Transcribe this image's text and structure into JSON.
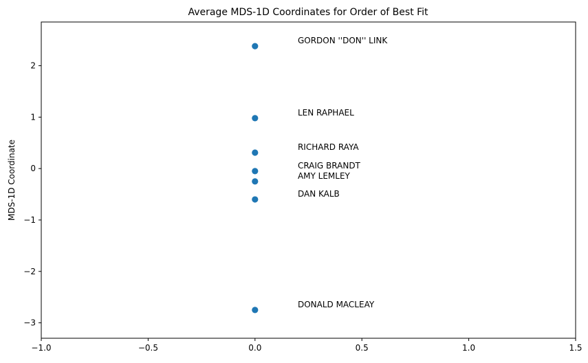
{
  "chart_data": {
    "type": "scatter",
    "title": "Average MDS-1D Coordinates for Order of Best Fit",
    "xlabel": "",
    "ylabel": "MDS-1D Coordinate",
    "xlim": [
      -1.0,
      1.5
    ],
    "ylim": [
      -3.3,
      2.85
    ],
    "grid": false,
    "legend": "none",
    "color": "#1f77b4",
    "x_ticks": [
      "−1.0",
      "−0.5",
      "0.0",
      "0.5",
      "1.0",
      "1.5"
    ],
    "x_tick_values": [
      -1.0,
      -0.5,
      0.0,
      0.5,
      1.0,
      1.5
    ],
    "y_ticks": [
      "−3",
      "−2",
      "−1",
      "0",
      "1",
      "2"
    ],
    "y_tick_values": [
      -3,
      -2,
      -1,
      0,
      1,
      2
    ],
    "label_offset_x": 0.2,
    "points": [
      {
        "x": 0,
        "y": 2.38,
        "label": "GORDON ''DON'' LINK"
      },
      {
        "x": 0,
        "y": 0.98,
        "label": "LEN RAPHAEL"
      },
      {
        "x": 0,
        "y": 0.31,
        "label": "RICHARD RAYA"
      },
      {
        "x": 0,
        "y": -0.05,
        "label": "CRAIG BRANDT"
      },
      {
        "x": 0,
        "y": -0.25,
        "label": "AMY LEMLEY"
      },
      {
        "x": 0,
        "y": -0.6,
        "label": "DAN KALB"
      },
      {
        "x": 0,
        "y": -2.75,
        "label": "DONALD MACLEAY"
      }
    ]
  }
}
